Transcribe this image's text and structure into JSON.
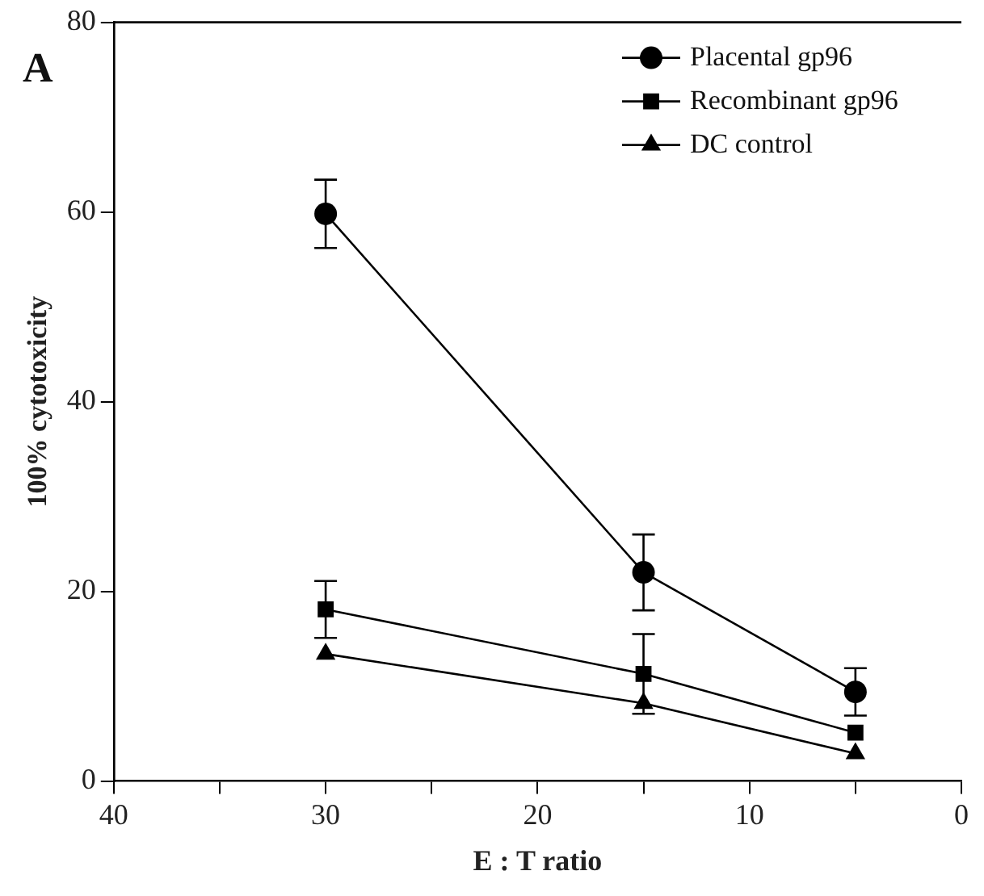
{
  "chart_data": {
    "type": "line",
    "xlabel": "E : T ratio",
    "ylabel": "100% cytotoxicity",
    "annotations": [
      "A"
    ],
    "xlim": [
      40,
      0
    ],
    "xticks": [
      40,
      {
        "value": 35,
        "label": null
      },
      30,
      {
        "value": 25,
        "label": null
      },
      20,
      {
        "value": 15,
        "label": null
      },
      10,
      {
        "value": 5,
        "label": null
      },
      0
    ],
    "ylim": [
      0,
      80
    ],
    "yticks": [
      0,
      20,
      40,
      60,
      80
    ],
    "x": [
      30,
      15,
      5
    ],
    "series": [
      {
        "name": "Placental gp96",
        "color": "#000000",
        "marker": "circle",
        "values": [
          59.8,
          22.0,
          9.4
        ],
        "errors": [
          3.6,
          4.0,
          2.5
        ]
      },
      {
        "name": "Recombinant gp96",
        "color": "#000000",
        "marker": "square",
        "values": [
          18.1,
          11.3,
          5.1
        ],
        "errors": [
          3.0,
          4.2,
          null
        ]
      },
      {
        "name": "DC control",
        "color": "#000000",
        "marker": "triangle",
        "values": [
          13.4,
          8.2,
          2.9
        ]
      }
    ],
    "grid": false,
    "legend": "top right",
    "line_style": "solid"
  }
}
